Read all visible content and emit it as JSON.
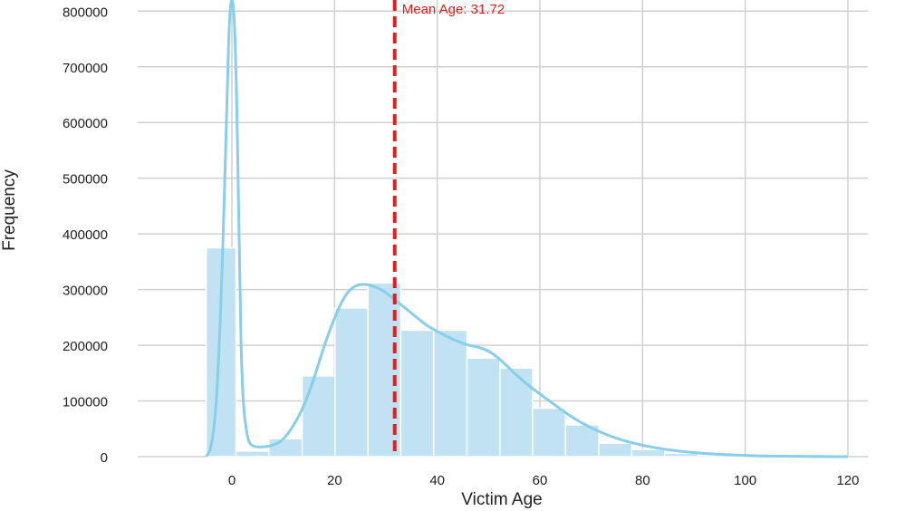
{
  "chart_data": {
    "type": "bar",
    "xlabel": "Victim Age",
    "ylabel": "Frequency",
    "xlim": [
      -18,
      121
    ],
    "ylim": [
      0,
      820000
    ],
    "xticks": [
      0,
      20,
      40,
      60,
      80,
      100,
      120
    ],
    "yticks": [
      0,
      100000,
      200000,
      300000,
      400000,
      500000,
      600000,
      700000,
      800000
    ],
    "grid": true,
    "bars": [
      {
        "x0": -5,
        "x1": 0.8,
        "value": 375000
      },
      {
        "x0": 0.8,
        "x1": 7.2,
        "value": 10000
      },
      {
        "x0": 7.2,
        "x1": 13.7,
        "value": 32000
      },
      {
        "x0": 13.7,
        "x1": 20.1,
        "value": 145000
      },
      {
        "x0": 20.1,
        "x1": 26.5,
        "value": 267000
      },
      {
        "x0": 26.5,
        "x1": 32.9,
        "value": 312000
      },
      {
        "x0": 32.9,
        "x1": 39.3,
        "value": 227000
      },
      {
        "x0": 39.3,
        "x1": 45.8,
        "value": 227000
      },
      {
        "x0": 45.8,
        "x1": 52.2,
        "value": 177000
      },
      {
        "x0": 52.2,
        "x1": 58.6,
        "value": 159000
      },
      {
        "x0": 58.6,
        "x1": 65.0,
        "value": 87000
      },
      {
        "x0": 65.0,
        "x1": 71.5,
        "value": 57000
      },
      {
        "x0": 71.5,
        "x1": 77.9,
        "value": 24000
      },
      {
        "x0": 77.9,
        "x1": 84.3,
        "value": 13000
      },
      {
        "x0": 84.3,
        "x1": 90.7,
        "value": 6000
      },
      {
        "x0": 90.7,
        "x1": 97.1,
        "value": 3000
      },
      {
        "x0": 97.1,
        "x1": 103.6,
        "value": 1000
      },
      {
        "x0": 103.6,
        "x1": 110.0,
        "value": 500
      },
      {
        "x0": 110.0,
        "x1": 116.4,
        "value": 200
      }
    ],
    "kde": {
      "x": [
        -5,
        -4,
        -3,
        -2,
        -1,
        -0.5,
        0,
        0.5,
        1,
        1.5,
        2,
        3,
        4,
        6,
        8,
        10,
        12,
        14,
        16,
        18,
        20,
        22,
        24,
        26,
        28,
        30,
        32,
        34,
        36,
        38,
        40,
        42,
        44,
        46,
        48,
        50,
        52,
        55,
        58,
        62,
        66,
        70,
        75,
        80,
        85,
        90,
        95,
        100,
        105,
        110,
        115,
        120
      ],
      "y": [
        0,
        15000,
        90000,
        300000,
        620000,
        790000,
        830000,
        790000,
        620000,
        330000,
        110000,
        30000,
        18000,
        17000,
        20000,
        30000,
        55000,
        90000,
        140000,
        200000,
        250000,
        290000,
        308000,
        310000,
        305000,
        295000,
        280000,
        265000,
        250000,
        235000,
        225000,
        215000,
        207000,
        200000,
        197000,
        190000,
        177000,
        150000,
        126000,
        99000,
        72000,
        51000,
        32000,
        20000,
        12000,
        7000,
        4000,
        2000,
        1000,
        500,
        200,
        0
      ]
    },
    "mean_line": {
      "x": 31.72,
      "label": "Mean Age: 31.72"
    },
    "colors": {
      "bar": "#c0e2f2",
      "bar_edge": "#ffffff",
      "kde": "#87ceeb",
      "mean": "#e02020",
      "grid": "#d0d0d0"
    }
  }
}
